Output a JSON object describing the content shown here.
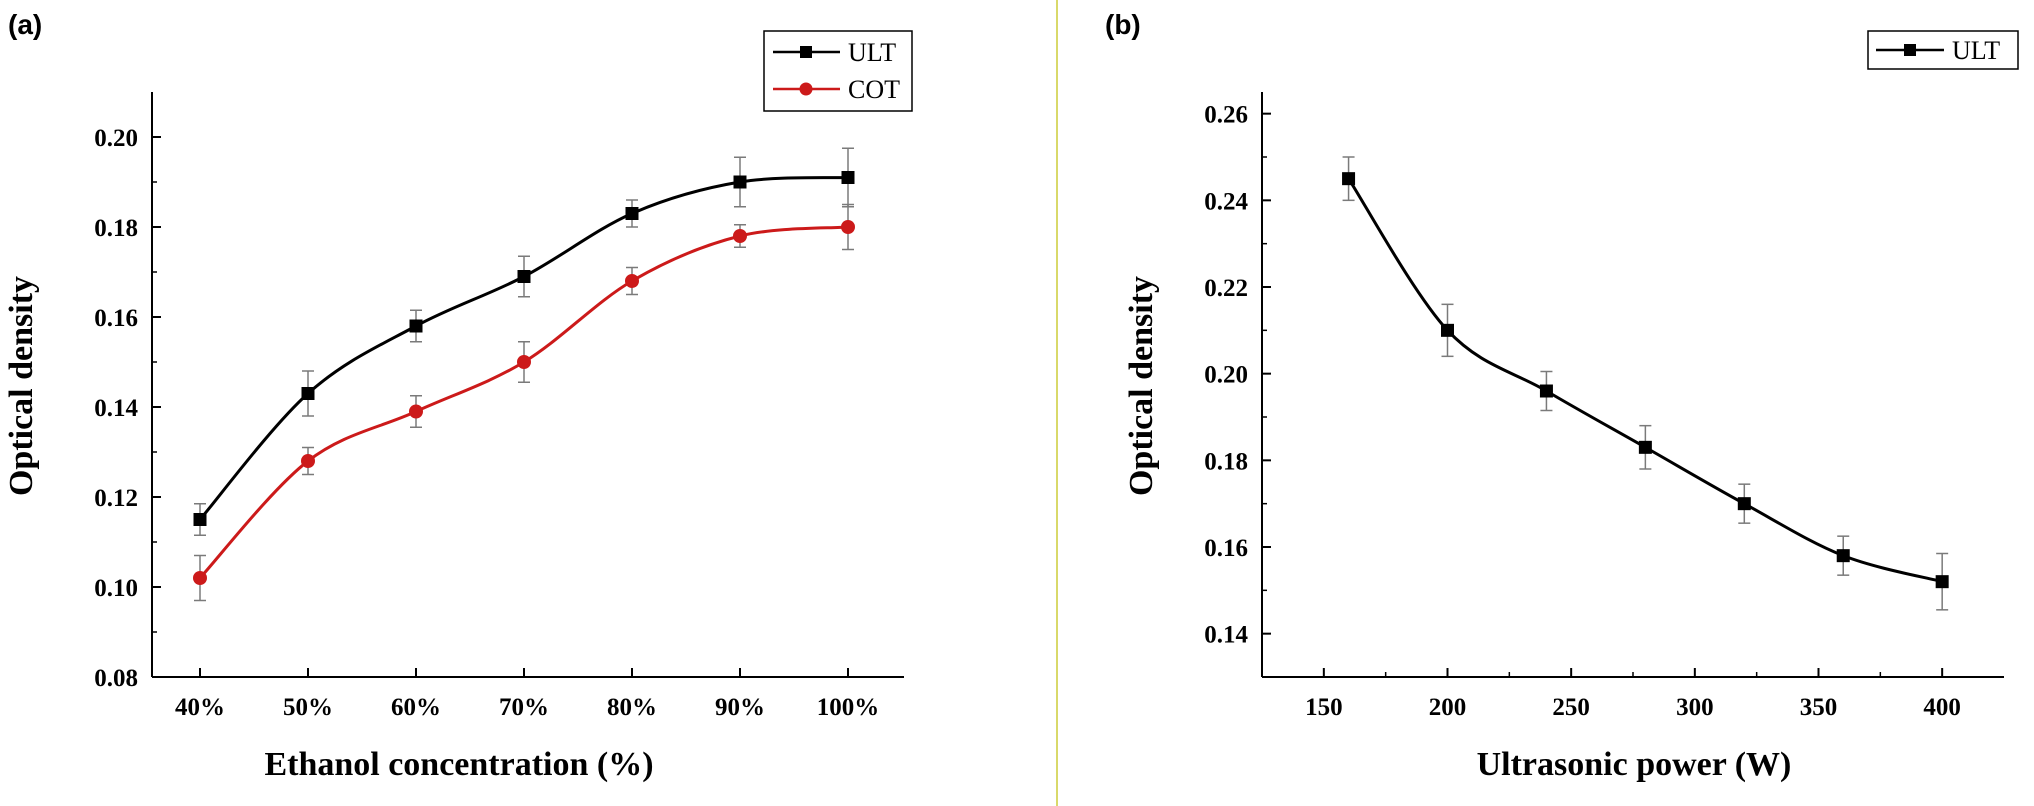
{
  "chart_data": [
    {
      "panel_label": "(a)",
      "type": "line",
      "xlabel": "Ethanol concentration (%)",
      "ylabel": "Optical density",
      "categories": [
        "40%",
        "50%",
        "60%",
        "70%",
        "80%",
        "90%",
        "100%"
      ],
      "ylim": [
        0.08,
        0.21
      ],
      "yticks": [
        "0.08",
        "0.10",
        "0.12",
        "0.14",
        "0.16",
        "0.18",
        "0.20"
      ],
      "grid": false,
      "legend_position": "top-right",
      "series": [
        {
          "name": "ULT",
          "color": "#000000",
          "marker": "square",
          "values": [
            0.115,
            0.143,
            0.158,
            0.169,
            0.183,
            0.19,
            0.191
          ],
          "errors": [
            0.0035,
            0.005,
            0.0035,
            0.0045,
            0.003,
            0.0055,
            0.0065
          ]
        },
        {
          "name": "COT",
          "color": "#cc1a1a",
          "marker": "circle",
          "values": [
            0.102,
            0.128,
            0.139,
            0.15,
            0.168,
            0.178,
            0.18
          ],
          "errors": [
            0.005,
            0.003,
            0.0035,
            0.0045,
            0.003,
            0.0025,
            0.005
          ]
        }
      ]
    },
    {
      "panel_label": "(b)",
      "type": "line",
      "xlabel": "Ultrasonic power (W)",
      "ylabel": "Optical density",
      "x": [
        160,
        200,
        240,
        280,
        320,
        360,
        400
      ],
      "xlim": [
        125,
        425
      ],
      "xticks": [
        "150",
        "200",
        "250",
        "300",
        "350",
        "400"
      ],
      "ylim": [
        0.13,
        0.265
      ],
      "yticks": [
        "0.14",
        "0.16",
        "0.18",
        "0.20",
        "0.22",
        "0.24",
        "0.26"
      ],
      "grid": false,
      "legend_position": "top-right",
      "series": [
        {
          "name": "ULT",
          "color": "#000000",
          "marker": "square",
          "values": [
            0.245,
            0.21,
            0.196,
            0.183,
            0.17,
            0.158,
            0.152
          ],
          "errors": [
            0.005,
            0.006,
            0.0045,
            0.005,
            0.0045,
            0.0045,
            0.0065
          ]
        }
      ]
    }
  ],
  "divider_color": "#d9d96a"
}
